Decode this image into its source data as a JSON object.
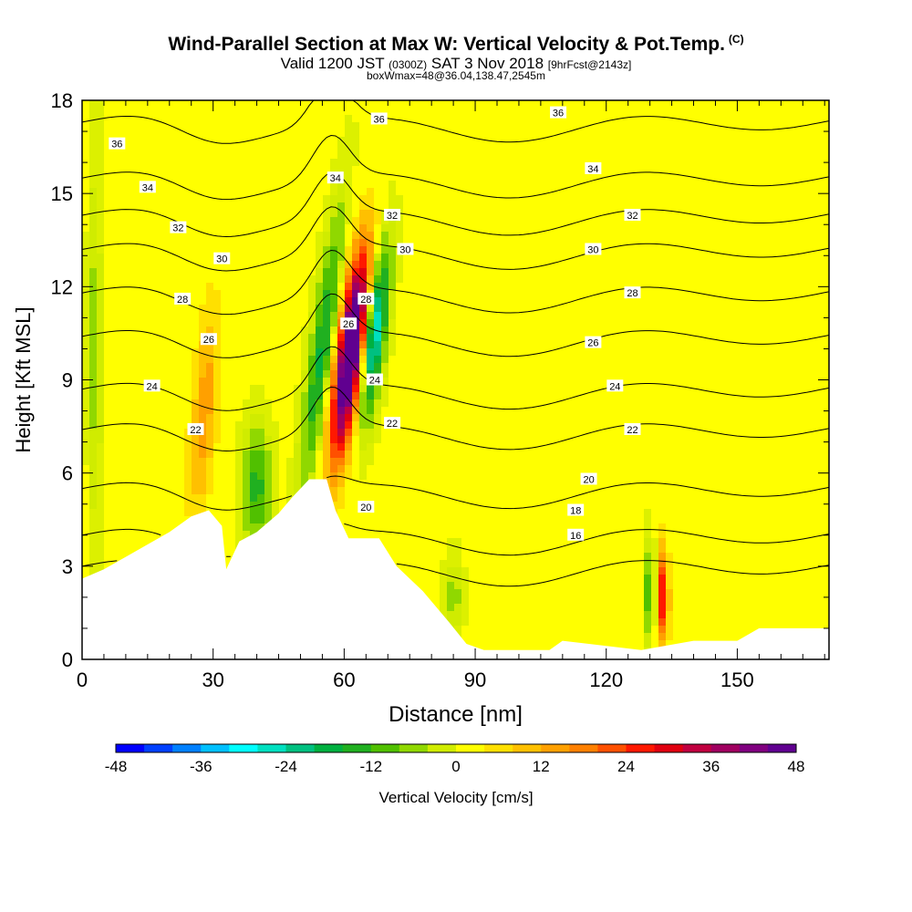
{
  "header": {
    "title_main": "Wind-Parallel Section at Max W: Vertical Velocity & Pot.Temp.",
    "title_mark": "(C)",
    "valid_prefix": "Valid 1200 JST",
    "valid_utc": "(0300Z)",
    "valid_date": "SAT 3 Nov 2018",
    "forecast_info": "[9hrFcst@2143z]",
    "subtitle": "boxWmax=48@36.04,138.47,2545m"
  },
  "colors": {
    "background_field": "#dcf000",
    "terrain": "#ffffff",
    "contour": "#000000",
    "palette": [
      "#0000ff",
      "#0040ff",
      "#0080ff",
      "#00c0ff",
      "#00ffff",
      "#00e0c0",
      "#00c080",
      "#00b040",
      "#20b020",
      "#50c000",
      "#90d800",
      "#d0ec00",
      "#ffff00",
      "#ffe000",
      "#ffc000",
      "#ffa000",
      "#ff8000",
      "#ff5000",
      "#ff1800",
      "#e00010",
      "#c00040",
      "#a00060",
      "#800080",
      "#600090"
    ]
  },
  "chart_data": {
    "type": "heatmap",
    "xlabel": "Distance [nm]",
    "ylabel": "Height [Kft MSL]",
    "xlim": [
      0,
      171
    ],
    "ylim": [
      0,
      18
    ],
    "x_ticks": [
      0,
      30,
      60,
      90,
      120,
      150
    ],
    "y_ticks": [
      0,
      3,
      6,
      9,
      12,
      15,
      18
    ],
    "colorbar": {
      "label": "Vertical Velocity [cm/s]",
      "min": -48,
      "max": 48,
      "step": 4,
      "tick_labels": [
        "-48",
        "-36",
        "-24",
        "-12",
        "0",
        "12",
        "24",
        "36",
        "48"
      ]
    },
    "terrain_height_kft": [
      {
        "x": 0,
        "h": 2.6
      },
      {
        "x": 5,
        "h": 2.9
      },
      {
        "x": 10,
        "h": 3.3
      },
      {
        "x": 15,
        "h": 3.7
      },
      {
        "x": 20,
        "h": 4.1
      },
      {
        "x": 25,
        "h": 4.6
      },
      {
        "x": 29,
        "h": 4.8
      },
      {
        "x": 32,
        "h": 4.3
      },
      {
        "x": 33,
        "h": 2.9
      },
      {
        "x": 36,
        "h": 3.8
      },
      {
        "x": 40,
        "h": 4.1
      },
      {
        "x": 45,
        "h": 4.7
      },
      {
        "x": 48,
        "h": 5.2
      },
      {
        "x": 52,
        "h": 5.8
      },
      {
        "x": 56,
        "h": 5.8
      },
      {
        "x": 58,
        "h": 4.8
      },
      {
        "x": 61,
        "h": 3.9
      },
      {
        "x": 68,
        "h": 3.9
      },
      {
        "x": 72,
        "h": 3.0
      },
      {
        "x": 78,
        "h": 2.2
      },
      {
        "x": 84,
        "h": 1.2
      },
      {
        "x": 88,
        "h": 0.5
      },
      {
        "x": 92,
        "h": 0.3
      },
      {
        "x": 107,
        "h": 0.3
      },
      {
        "x": 110,
        "h": 0.6
      },
      {
        "x": 128,
        "h": 0.3
      },
      {
        "x": 140,
        "h": 0.6
      },
      {
        "x": 150,
        "h": 0.6
      },
      {
        "x": 155,
        "h": 1.0
      },
      {
        "x": 171,
        "h": 1.0
      }
    ],
    "w_features_cms": [
      {
        "x": 62,
        "z": 10.5,
        "w": 42,
        "sx": 3,
        "sz": 3.0,
        "tilt": -0.85
      },
      {
        "x": 60,
        "z": 8.5,
        "w": 22,
        "sx": 3,
        "sz": 3.0,
        "tilt": -0.85
      },
      {
        "x": 55,
        "z": 10.0,
        "w": -18,
        "sx": 2.5,
        "sz": 4.0,
        "tilt": -0.9
      },
      {
        "x": 67,
        "z": 10.5,
        "w": -30,
        "sx": 2.3,
        "sz": 2.5,
        "tilt": -0.8
      },
      {
        "x": 28,
        "z": 8.0,
        "w": 14,
        "sx": 3,
        "sz": 3.5,
        "tilt": -0.5
      },
      {
        "x": 40,
        "z": 5.5,
        "w": -14,
        "sx": 3,
        "sz": 1.8,
        "tilt": 0
      },
      {
        "x": 133,
        "z": 2.0,
        "w": 28,
        "sx": 1.3,
        "sz": 1.6,
        "tilt": 0
      },
      {
        "x": 130,
        "z": 2.2,
        "w": -12,
        "sx": 1.2,
        "sz": 1.5,
        "tilt": 0
      },
      {
        "x": 85,
        "z": 2.0,
        "w": -6,
        "sx": 2,
        "sz": 1.2,
        "tilt": 0
      },
      {
        "x": 3,
        "z": 10.0,
        "w": -6,
        "sx": 1.5,
        "sz": 6.0,
        "tilt": 0
      },
      {
        "x": 140,
        "z": 12.0,
        "w": 3,
        "sx": 4,
        "sz": 1.5,
        "tilt": 0
      }
    ],
    "theta_contour_levels_c": [
      16,
      18,
      20,
      22,
      24,
      26,
      28,
      30,
      32,
      34,
      36
    ],
    "theta_contour_heights_kft": [
      3.0,
      4.0,
      5.5,
      7.4,
      8.7,
      10.4,
      11.8,
      13.2,
      14.3,
      15.5,
      17.3
    ],
    "theta_contour_labels": [
      {
        "text": "36",
        "x": 8,
        "z": 16.6
      },
      {
        "text": "36",
        "x": 68,
        "z": 17.4
      },
      {
        "text": "36",
        "x": 109,
        "z": 17.6
      },
      {
        "text": "34",
        "x": 15,
        "z": 15.2
      },
      {
        "text": "34",
        "x": 58,
        "z": 15.5
      },
      {
        "text": "34",
        "x": 117,
        "z": 15.8
      },
      {
        "text": "32",
        "x": 22,
        "z": 13.9
      },
      {
        "text": "32",
        "x": 71,
        "z": 14.3
      },
      {
        "text": "32",
        "x": 126,
        "z": 14.3
      },
      {
        "text": "30",
        "x": 32,
        "z": 12.9
      },
      {
        "text": "30",
        "x": 74,
        "z": 13.2
      },
      {
        "text": "30",
        "x": 117,
        "z": 13.2
      },
      {
        "text": "28",
        "x": 23,
        "z": 11.6
      },
      {
        "text": "28",
        "x": 65,
        "z": 11.6
      },
      {
        "text": "28",
        "x": 126,
        "z": 11.8
      },
      {
        "text": "26",
        "x": 29,
        "z": 10.3
      },
      {
        "text": "26",
        "x": 61,
        "z": 10.8
      },
      {
        "text": "26",
        "x": 117,
        "z": 10.2
      },
      {
        "text": "24",
        "x": 16,
        "z": 8.8
      },
      {
        "text": "24",
        "x": 67,
        "z": 9.0
      },
      {
        "text": "24",
        "x": 122,
        "z": 8.8
      },
      {
        "text": "22",
        "x": 26,
        "z": 7.4
      },
      {
        "text": "22",
        "x": 71,
        "z": 7.6
      },
      {
        "text": "22",
        "x": 126,
        "z": 7.4
      },
      {
        "text": "20",
        "x": 65,
        "z": 4.9
      },
      {
        "text": "20",
        "x": 116,
        "z": 5.8
      },
      {
        "text": "18",
        "x": 113,
        "z": 4.8
      },
      {
        "text": "16",
        "x": 113,
        "z": 4.0
      }
    ]
  }
}
